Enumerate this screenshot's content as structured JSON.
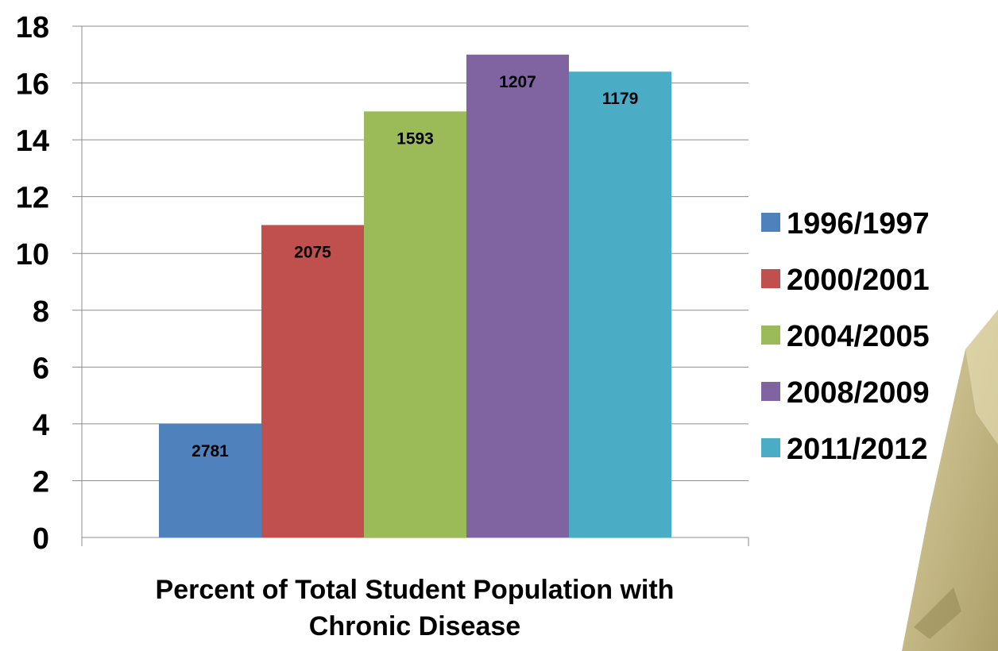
{
  "chart_data": {
    "type": "bar",
    "categories": [
      "Percent of Total Student Population with Chronic Disease"
    ],
    "category_label_lines": [
      "Percent of Total Student Population with",
      "Chronic Disease"
    ],
    "series": [
      {
        "name": "1996/1997",
        "values": [
          4
        ],
        "data_label": "2781",
        "color": "#4f81bd"
      },
      {
        "name": "2000/2001",
        "values": [
          11
        ],
        "data_label": "2075",
        "color": "#c0504d"
      },
      {
        "name": "2004/2005",
        "values": [
          15
        ],
        "data_label": "1593",
        "color": "#9bbb59"
      },
      {
        "name": "2008/2009",
        "values": [
          17
        ],
        "data_label": "1207",
        "color": "#8064a2"
      },
      {
        "name": "2011/2012",
        "values": [
          16.4
        ],
        "data_label": "1179",
        "color": "#4bacc6"
      }
    ],
    "ylim": [
      0,
      18
    ],
    "yticks": [
      "0",
      "2",
      "4",
      "6",
      "8",
      "10",
      "12",
      "14",
      "16",
      "18"
    ],
    "grid": true,
    "legend_position": "right"
  }
}
